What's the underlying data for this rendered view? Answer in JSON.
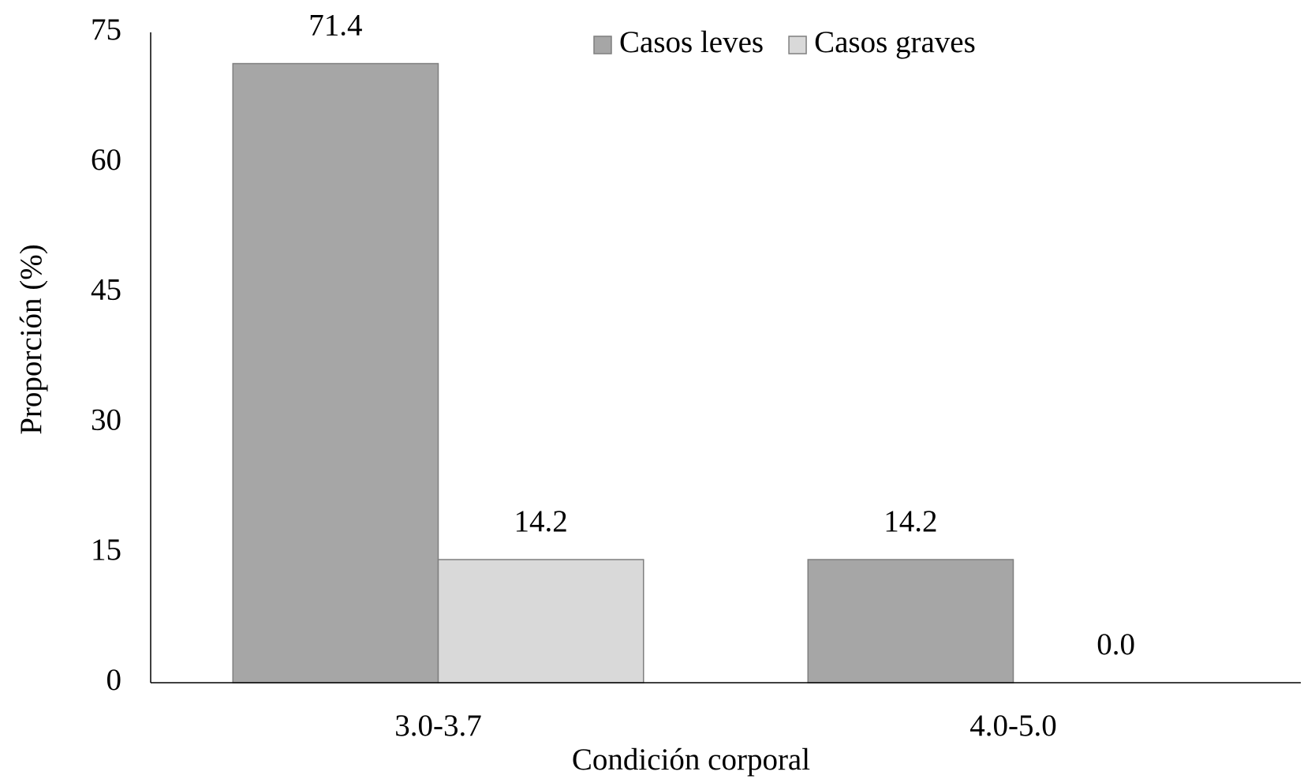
{
  "chart_data": {
    "type": "bar",
    "x_label": "Condición corporal",
    "y_label": "Proporción (%)",
    "categories": [
      "3.0-3.7",
      "4.0-5.0"
    ],
    "series": [
      {
        "name": "Casos leves",
        "color": "#a6a6a6",
        "values": [
          71.4,
          14.2
        ],
        "value_labels": [
          "71.4",
          "14.2"
        ]
      },
      {
        "name": "Casos graves",
        "color": "#d9d9d9",
        "values": [
          14.2,
          0
        ],
        "value_labels": [
          "14.2",
          "0.0"
        ]
      }
    ],
    "ylim": [
      0,
      75
    ],
    "yticks": [
      0,
      15,
      30,
      45,
      60,
      75
    ],
    "grid": false,
    "legend": "top"
  }
}
